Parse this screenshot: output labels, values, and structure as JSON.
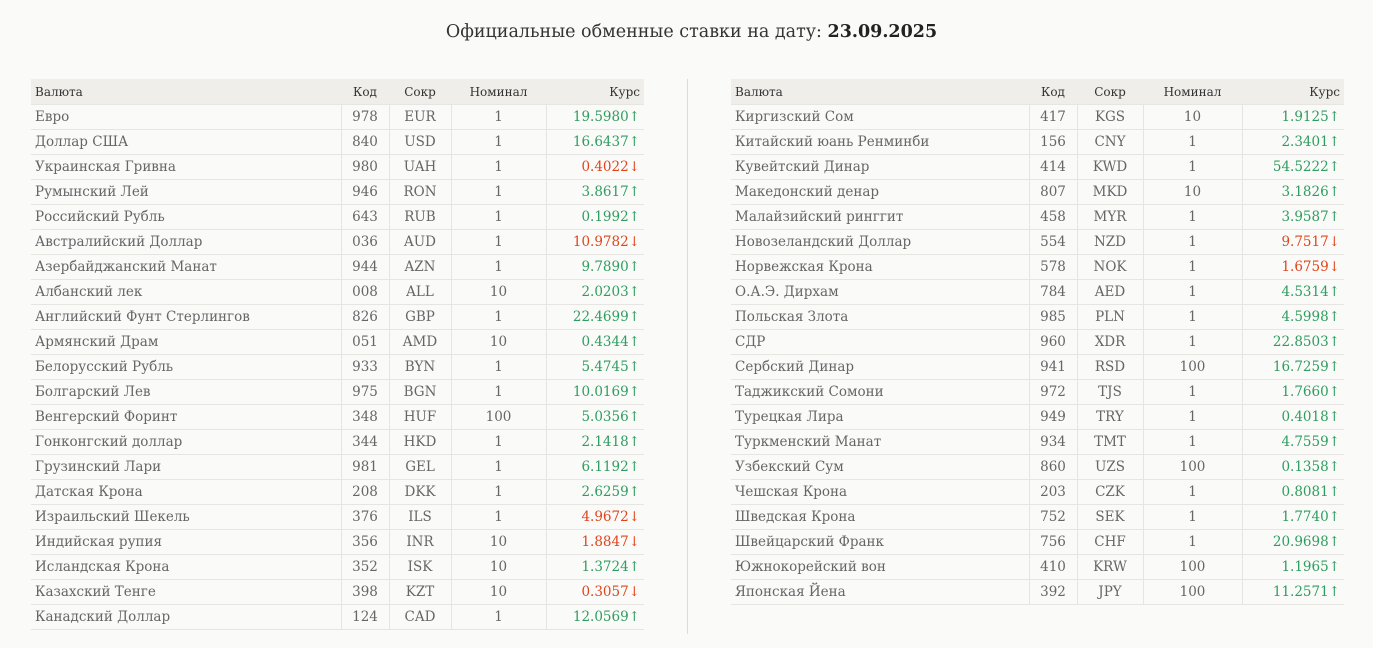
{
  "page": {
    "title_prefix": "Официальные обменные ставки на дату:",
    "title_date": "23.09.2025"
  },
  "columns": {
    "name": "Валюта",
    "code": "Код",
    "abbr": "Сокр",
    "nominal": "Номинал",
    "rate": "Курс"
  },
  "colors": {
    "up": "#2f9d5f",
    "down": "#e0451c"
  },
  "left_rows": [
    {
      "name": "Евро",
      "code": "978",
      "abbr": "EUR",
      "nominal": "1",
      "rate": "19.5980",
      "trend": "up"
    },
    {
      "name": "Доллар США",
      "code": "840",
      "abbr": "USD",
      "nominal": "1",
      "rate": "16.6437",
      "trend": "up"
    },
    {
      "name": "Украинская Гривна",
      "code": "980",
      "abbr": "UAH",
      "nominal": "1",
      "rate": "0.4022",
      "trend": "down"
    },
    {
      "name": "Румынский Лей",
      "code": "946",
      "abbr": "RON",
      "nominal": "1",
      "rate": "3.8617",
      "trend": "up"
    },
    {
      "name": "Российский Рубль",
      "code": "643",
      "abbr": "RUB",
      "nominal": "1",
      "rate": "0.1992",
      "trend": "up"
    },
    {
      "name": "Австралийский Доллар",
      "code": "036",
      "abbr": "AUD",
      "nominal": "1",
      "rate": "10.9782",
      "trend": "down"
    },
    {
      "name": "Азербайджанский Манат",
      "code": "944",
      "abbr": "AZN",
      "nominal": "1",
      "rate": "9.7890",
      "trend": "up"
    },
    {
      "name": "Албанский лек",
      "code": "008",
      "abbr": "ALL",
      "nominal": "10",
      "rate": "2.0203",
      "trend": "up"
    },
    {
      "name": "Английский Фунт Стерлингов",
      "code": "826",
      "abbr": "GBP",
      "nominal": "1",
      "rate": "22.4699",
      "trend": "up"
    },
    {
      "name": "Армянский Драм",
      "code": "051",
      "abbr": "AMD",
      "nominal": "10",
      "rate": "0.4344",
      "trend": "up"
    },
    {
      "name": "Белорусский Рубль",
      "code": "933",
      "abbr": "BYN",
      "nominal": "1",
      "rate": "5.4745",
      "trend": "up"
    },
    {
      "name": "Болгарский Лев",
      "code": "975",
      "abbr": "BGN",
      "nominal": "1",
      "rate": "10.0169",
      "trend": "up"
    },
    {
      "name": "Венгерский Форинт",
      "code": "348",
      "abbr": "HUF",
      "nominal": "100",
      "rate": "5.0356",
      "trend": "up"
    },
    {
      "name": "Гонконгский доллар",
      "code": "344",
      "abbr": "HKD",
      "nominal": "1",
      "rate": "2.1418",
      "trend": "up"
    },
    {
      "name": "Грузинский Лари",
      "code": "981",
      "abbr": "GEL",
      "nominal": "1",
      "rate": "6.1192",
      "trend": "up"
    },
    {
      "name": "Датская Крона",
      "code": "208",
      "abbr": "DKK",
      "nominal": "1",
      "rate": "2.6259",
      "trend": "up"
    },
    {
      "name": "Израильский Шекель",
      "code": "376",
      "abbr": "ILS",
      "nominal": "1",
      "rate": "4.9672",
      "trend": "down"
    },
    {
      "name": "Индийская рупия",
      "code": "356",
      "abbr": "INR",
      "nominal": "10",
      "rate": "1.8847",
      "trend": "down"
    },
    {
      "name": "Исландская Крона",
      "code": "352",
      "abbr": "ISK",
      "nominal": "10",
      "rate": "1.3724",
      "trend": "up"
    },
    {
      "name": "Казахский Тенге",
      "code": "398",
      "abbr": "KZT",
      "nominal": "10",
      "rate": "0.3057",
      "trend": "down"
    },
    {
      "name": "Канадский Доллар",
      "code": "124",
      "abbr": "CAD",
      "nominal": "1",
      "rate": "12.0569",
      "trend": "up"
    }
  ],
  "right_rows": [
    {
      "name": "Киргизский Сом",
      "code": "417",
      "abbr": "KGS",
      "nominal": "10",
      "rate": "1.9125",
      "trend": "up"
    },
    {
      "name": "Китайский юань Ренминби",
      "code": "156",
      "abbr": "CNY",
      "nominal": "1",
      "rate": "2.3401",
      "trend": "up"
    },
    {
      "name": "Кувейтский Динар",
      "code": "414",
      "abbr": "KWD",
      "nominal": "1",
      "rate": "54.5222",
      "trend": "up"
    },
    {
      "name": "Македонский денар",
      "code": "807",
      "abbr": "MKD",
      "nominal": "10",
      "rate": "3.1826",
      "trend": "up"
    },
    {
      "name": "Малайзийский ринггит",
      "code": "458",
      "abbr": "MYR",
      "nominal": "1",
      "rate": "3.9587",
      "trend": "up"
    },
    {
      "name": "Новозеландский Доллар",
      "code": "554",
      "abbr": "NZD",
      "nominal": "1",
      "rate": "9.7517",
      "trend": "down"
    },
    {
      "name": "Норвежская Крона",
      "code": "578",
      "abbr": "NOK",
      "nominal": "1",
      "rate": "1.6759",
      "trend": "down"
    },
    {
      "name": "О.А.Э. Дирхам",
      "code": "784",
      "abbr": "AED",
      "nominal": "1",
      "rate": "4.5314",
      "trend": "up"
    },
    {
      "name": "Польская Злота",
      "code": "985",
      "abbr": "PLN",
      "nominal": "1",
      "rate": "4.5998",
      "trend": "up"
    },
    {
      "name": "СДР",
      "code": "960",
      "abbr": "XDR",
      "nominal": "1",
      "rate": "22.8503",
      "trend": "up"
    },
    {
      "name": "Сербский Динар",
      "code": "941",
      "abbr": "RSD",
      "nominal": "100",
      "rate": "16.7259",
      "trend": "up"
    },
    {
      "name": "Таджикский Сомони",
      "code": "972",
      "abbr": "TJS",
      "nominal": "1",
      "rate": "1.7660",
      "trend": "up"
    },
    {
      "name": "Турецкая Лира",
      "code": "949",
      "abbr": "TRY",
      "nominal": "1",
      "rate": "0.4018",
      "trend": "up"
    },
    {
      "name": "Туркменский Манат",
      "code": "934",
      "abbr": "TMT",
      "nominal": "1",
      "rate": "4.7559",
      "trend": "up"
    },
    {
      "name": "Узбекский Сум",
      "code": "860",
      "abbr": "UZS",
      "nominal": "100",
      "rate": "0.1358",
      "trend": "up"
    },
    {
      "name": "Чешская Крона",
      "code": "203",
      "abbr": "CZK",
      "nominal": "1",
      "rate": "0.8081",
      "trend": "up"
    },
    {
      "name": "Шведская Крона",
      "code": "752",
      "abbr": "SEK",
      "nominal": "1",
      "rate": "1.7740",
      "trend": "up"
    },
    {
      "name": "Швейцарский Франк",
      "code": "756",
      "abbr": "CHF",
      "nominal": "1",
      "rate": "20.9698",
      "trend": "up"
    },
    {
      "name": "Южнокорейский вон",
      "code": "410",
      "abbr": "KRW",
      "nominal": "100",
      "rate": "1.1965",
      "trend": "up"
    },
    {
      "name": "Японская Йена",
      "code": "392",
      "abbr": "JPY",
      "nominal": "100",
      "rate": "11.2571",
      "trend": "up"
    }
  ]
}
